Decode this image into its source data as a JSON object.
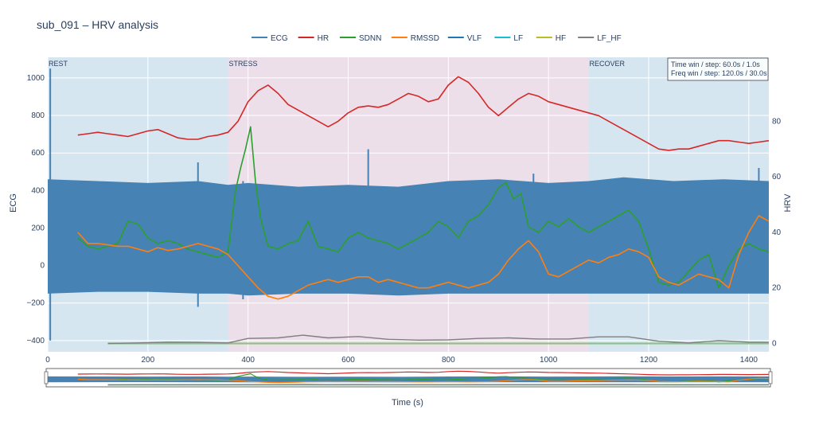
{
  "chart_data": {
    "type": "line",
    "title": "sub_091 – HRV analysis",
    "xlabel": "Time (s)",
    "ylabel_left": "ECG",
    "ylabel_right": "HRV",
    "xlim": [
      0,
      1440
    ],
    "ylim_left": [
      -460,
      1110
    ],
    "ylim_right": [
      -3,
      103
    ],
    "x_ticks": [
      0,
      200,
      400,
      600,
      800,
      1000,
      1200,
      1400
    ],
    "y_left_ticks": [
      -400,
      -200,
      0,
      200,
      400,
      600,
      800,
      1000
    ],
    "y_right_ticks": [
      0,
      20,
      40,
      60,
      80
    ],
    "grid": true,
    "legend_position": "top-center",
    "rangeslider": true,
    "regions": [
      {
        "label": "REST",
        "start": 0,
        "end": 360,
        "color": "#d6e6f1"
      },
      {
        "label": "STRESS",
        "start": 360,
        "end": 1080,
        "color": "#ecdfe9"
      },
      {
        "label": "RECOVER",
        "start": 1080,
        "end": 1440,
        "color": "#d6e6f1"
      }
    ],
    "annotation": [
      "Time win / step: 60.0s / 1.0s",
      "Freq win / step: 120.0s / 30.0s"
    ],
    "series": [
      {
        "name": "ECG",
        "color": "#4682b4",
        "axis": "left",
        "kind": "band",
        "x": [
          0,
          100,
          200,
          300,
          360,
          400,
          500,
          600,
          700,
          800,
          900,
          1000,
          1080,
          1150,
          1250,
          1350,
          1440
        ],
        "upper": [
          460,
          450,
          440,
          450,
          430,
          440,
          420,
          430,
          420,
          450,
          460,
          440,
          450,
          470,
          450,
          460,
          450
        ],
        "lower": [
          -150,
          -140,
          -140,
          -150,
          -150,
          -160,
          -150,
          -150,
          -160,
          -150,
          -150,
          -150,
          -150,
          -150,
          -150,
          -150,
          -150
        ],
        "spikes": [
          [
            5,
            -400,
            1050
          ],
          [
            300,
            -220,
            550
          ],
          [
            390,
            -180,
            450
          ],
          [
            640,
            -150,
            620
          ],
          [
            970,
            -120,
            490
          ],
          [
            1420,
            -100,
            520
          ]
        ]
      },
      {
        "name": "HR",
        "color": "#d62728",
        "axis": "right",
        "x": [
          60,
          80,
          100,
          120,
          140,
          160,
          180,
          200,
          220,
          240,
          260,
          280,
          300,
          320,
          340,
          360,
          380,
          400,
          420,
          440,
          460,
          480,
          500,
          520,
          540,
          560,
          580,
          600,
          620,
          640,
          660,
          680,
          700,
          720,
          740,
          760,
          780,
          800,
          820,
          840,
          860,
          880,
          900,
          920,
          940,
          960,
          980,
          1000,
          1020,
          1040,
          1060,
          1080,
          1100,
          1120,
          1140,
          1160,
          1180,
          1200,
          1220,
          1240,
          1260,
          1280,
          1300,
          1320,
          1340,
          1360,
          1380,
          1400,
          1420,
          1440
        ],
        "values": [
          75,
          75.5,
          76,
          75.5,
          75,
          74.5,
          75.5,
          76.5,
          77,
          75.5,
          74,
          73.5,
          73.5,
          74.5,
          75,
          76,
          80,
          87,
          91,
          93,
          90,
          86,
          84,
          82,
          80,
          78,
          80,
          83,
          85,
          85.5,
          85,
          86,
          88,
          90,
          89,
          87,
          88,
          93,
          96,
          94,
          90,
          85,
          82,
          85,
          88,
          90,
          89,
          87,
          86,
          85,
          84,
          83,
          82,
          80,
          78,
          76,
          74,
          72,
          70,
          69.5,
          70,
          70,
          71,
          72,
          73,
          73,
          72.5,
          72,
          72.5,
          73
        ]
      },
      {
        "name": "SDNN",
        "color": "#2ca02c",
        "axis": "right",
        "x": [
          60,
          80,
          100,
          120,
          140,
          160,
          180,
          200,
          220,
          240,
          260,
          280,
          300,
          320,
          340,
          360,
          375,
          385,
          395,
          405,
          415,
          425,
          440,
          460,
          480,
          500,
          520,
          540,
          560,
          580,
          600,
          620,
          640,
          660,
          680,
          700,
          720,
          740,
          760,
          780,
          800,
          820,
          840,
          860,
          880,
          900,
          915,
          930,
          945,
          960,
          980,
          1000,
          1020,
          1040,
          1060,
          1080,
          1100,
          1120,
          1140,
          1160,
          1180,
          1200,
          1220,
          1240,
          1260,
          1280,
          1300,
          1320,
          1340,
          1360,
          1380,
          1400,
          1420,
          1440
        ],
        "values": [
          38,
          35,
          34,
          35,
          36,
          44,
          43,
          38,
          36,
          37,
          36,
          34,
          33,
          32,
          31,
          33,
          55,
          63,
          70,
          78,
          58,
          45,
          35,
          34,
          36,
          37,
          44,
          35,
          34,
          33,
          38,
          40,
          38,
          37,
          36,
          34,
          36,
          38,
          40,
          44,
          42,
          38,
          44,
          46,
          50,
          56,
          58,
          52,
          54,
          42,
          40,
          44,
          42,
          45,
          42,
          40,
          42,
          44,
          46,
          48,
          44,
          34,
          22,
          21,
          22,
          26,
          30,
          32,
          20,
          28,
          34,
          36,
          34,
          33
        ]
      },
      {
        "name": "RMSSD",
        "color": "#ff7f0e",
        "axis": "right",
        "x": [
          60,
          80,
          100,
          120,
          140,
          160,
          180,
          200,
          220,
          240,
          260,
          280,
          300,
          320,
          340,
          360,
          380,
          400,
          420,
          440,
          460,
          480,
          500,
          520,
          540,
          560,
          580,
          600,
          620,
          640,
          660,
          680,
          700,
          720,
          740,
          760,
          780,
          800,
          820,
          840,
          860,
          880,
          900,
          920,
          940,
          960,
          980,
          1000,
          1020,
          1040,
          1060,
          1080,
          1100,
          1120,
          1140,
          1160,
          1180,
          1200,
          1220,
          1240,
          1260,
          1280,
          1300,
          1320,
          1340,
          1360,
          1380,
          1400,
          1420,
          1440
        ],
        "values": [
          40,
          36,
          36,
          35.5,
          35,
          35,
          34,
          33,
          34.5,
          33.5,
          34,
          35,
          36,
          35,
          34,
          32,
          28,
          24,
          20,
          17,
          16,
          17,
          19,
          21,
          22,
          23,
          22,
          23,
          24,
          24,
          22,
          23,
          22,
          21,
          20,
          20,
          21,
          22,
          21,
          20,
          21,
          22,
          25,
          30,
          34,
          37,
          33,
          25,
          24,
          26,
          28,
          30,
          29,
          31,
          32,
          34,
          33,
          31,
          24,
          22,
          21,
          23,
          25,
          24,
          23,
          20,
          32,
          40,
          46,
          44
        ]
      },
      {
        "name": "VLF",
        "color": "#1f77b4",
        "axis": "right",
        "x": [
          120,
          400,
          800,
          1200,
          1440
        ],
        "values": [
          0,
          0,
          0,
          0,
          0
        ]
      },
      {
        "name": "LF",
        "color": "#17becf",
        "axis": "right",
        "x": [
          120,
          400,
          800,
          1200,
          1440
        ],
        "values": [
          0,
          0,
          0,
          0,
          0
        ]
      },
      {
        "name": "HF",
        "color": "#bcbd22",
        "axis": "right",
        "x": [
          120,
          400,
          800,
          1200,
          1440
        ],
        "values": [
          0,
          0,
          0,
          0,
          0
        ]
      },
      {
        "name": "LF_HF",
        "color": "#7f7f7f",
        "axis": "right",
        "x": [
          120,
          180,
          240,
          300,
          360,
          400,
          460,
          510,
          560,
          620,
          680,
          740,
          800,
          860,
          920,
          980,
          1040,
          1100,
          1160,
          1220,
          1280,
          1340,
          1400,
          1440
        ],
        "values": [
          0,
          0.2,
          0.5,
          0.4,
          0.2,
          1.8,
          2,
          3,
          2,
          2.5,
          1.5,
          1.2,
          1.3,
          1.8,
          2,
          1.6,
          1.6,
          2.4,
          2.4,
          0.8,
          0.2,
          1,
          0.5,
          0.4
        ]
      }
    ]
  }
}
